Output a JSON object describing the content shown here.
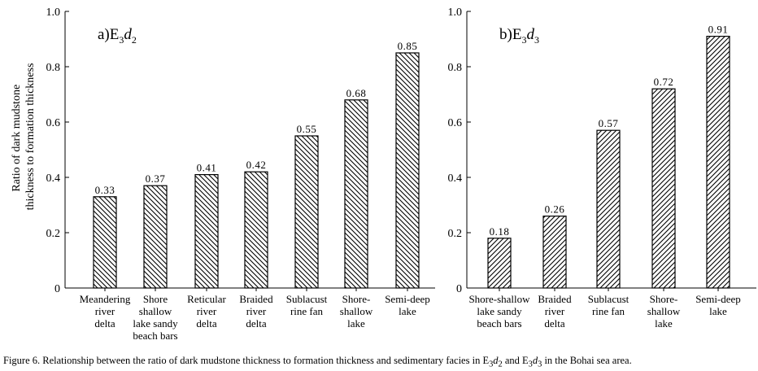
{
  "chart_data": [
    {
      "type": "bar",
      "title_main": "a)E",
      "title_sub": "3",
      "title_italic": "d",
      "title_sub2": "2",
      "ylabel_line1": "Ratio of dark mudstone",
      "ylabel_line2": "thickness to formation thickness",
      "ylim": [
        0,
        1.0
      ],
      "yticks": [
        "0",
        "0.2",
        "0.4",
        "0.6",
        "0.8",
        "1.0"
      ],
      "categories": [
        [
          "Meandering",
          "river",
          "delta"
        ],
        [
          "Shore",
          "shallow",
          "lake sandy",
          "beach bars"
        ],
        [
          "Reticular",
          "river",
          "delta"
        ],
        [
          "Braided",
          "river",
          "delta"
        ],
        [
          "Sublacust",
          "rine fan"
        ],
        [
          "Shore-",
          "shallow",
          "lake"
        ],
        [
          "Semi-deep",
          "lake"
        ]
      ],
      "values": [
        0.33,
        0.37,
        0.41,
        0.42,
        0.55,
        0.68,
        0.85
      ],
      "value_labels": [
        "0.33",
        "0.37",
        "0.41",
        "0.42",
        "0.55",
        "0.68",
        "0.85"
      ],
      "hatch": "backslash",
      "grid": false
    },
    {
      "type": "bar",
      "title_main": "b)E",
      "title_sub": "3",
      "title_italic": "d",
      "title_sub2": "3",
      "ylim": [
        0,
        1.0
      ],
      "yticks": [
        "0",
        "0.2",
        "0.4",
        "0.6",
        "0.8",
        "1.0"
      ],
      "categories": [
        [
          "Shore-shallow",
          "lake sandy",
          "beach bars"
        ],
        [
          "Braided",
          "river",
          "delta"
        ],
        [
          "Sublacust",
          "rine fan"
        ],
        [
          "Shore-",
          "shallow",
          "lake"
        ],
        [
          "Semi-deep",
          "lake"
        ]
      ],
      "values": [
        0.18,
        0.26,
        0.57,
        0.72,
        0.91
      ],
      "value_labels": [
        "0.18",
        "0.26",
        "0.57",
        "0.72",
        "0.91"
      ],
      "hatch": "slash",
      "grid": false
    }
  ],
  "caption": {
    "prefix": "Figure 6. Relationship between the ratio of dark mudstone thickness to formation thickness and sedimentary facies in E",
    "s1": "3",
    "i1": "d",
    "s2": "2",
    "mid": " and E",
    "s3": "3",
    "i2": "d",
    "s4": "3",
    "suffix": " in the Bohai sea area."
  }
}
